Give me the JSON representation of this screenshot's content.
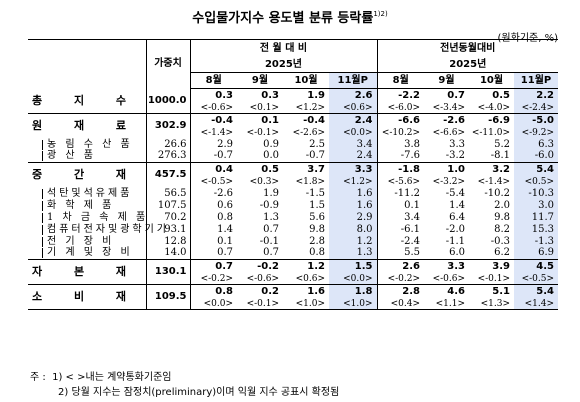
{
  "title": "수입물가지수 용도별 분류 등락률",
  "title_note": "1)2)",
  "unit": "(원화기준, %)",
  "header": {
    "weight": "가중치",
    "mom": "전 월 대 비",
    "yoy": "전년동월대비",
    "year": "2025년",
    "months": [
      "8월",
      "9월",
      "10월",
      "11월P"
    ]
  },
  "rows": [
    {
      "name": "총 지 수",
      "level": 0,
      "weight": "1000.0",
      "mom": [
        "0.3",
        "0.3",
        "1.9",
        "2.6"
      ],
      "mom_c": [
        "<-0.6>",
        "<0.1>",
        "<1.2>",
        "<0.6>"
      ],
      "yoy": [
        "-2.2",
        "0.7",
        "0.5",
        "2.2"
      ],
      "yoy_c": [
        "<-6.0>",
        "<-3.4>",
        "<-4.0>",
        "<-2.4>"
      ]
    },
    {
      "name": "원 재 료",
      "level": 0,
      "weight": "302.9",
      "mom": [
        "-0.4",
        "0.1",
        "-0.4",
        "2.4"
      ],
      "mom_c": [
        "<-1.4>",
        "<-0.1>",
        "<-2.6>",
        "<0.0>"
      ],
      "yoy": [
        "-6.6",
        "-2.6",
        "-6.9",
        "-5.0"
      ],
      "yoy_c": [
        "<-10.2>",
        "<-6.6>",
        "<-11.0>",
        "<-9.2>"
      ]
    },
    {
      "name": "농 림 수 산 품",
      "level": 1,
      "weight": "26.6",
      "mom": [
        "2.9",
        "0.9",
        "2.5",
        "3.4"
      ],
      "yoy": [
        "3.8",
        "3.3",
        "5.2",
        "6.3"
      ]
    },
    {
      "name": "광 산 품",
      "level": 1,
      "weight": "276.3",
      "mom": [
        "-0.7",
        "0.0",
        "-0.7",
        "2.4"
      ],
      "yoy": [
        "-7.6",
        "-3.2",
        "-8.1",
        "-6.0"
      ]
    },
    {
      "name": "중 간 재",
      "level": 0,
      "weight": "457.5",
      "mom": [
        "0.4",
        "0.5",
        "3.7",
        "3.3"
      ],
      "mom_c": [
        "<-0.5>",
        "<0.3>",
        "<1.8>",
        "<1.2>"
      ],
      "yoy": [
        "-1.8",
        "1.0",
        "3.2",
        "5.4"
      ],
      "yoy_c": [
        "<-5.6>",
        "<-3.2>",
        "<-1.4>",
        "<0.5>"
      ]
    },
    {
      "name": "석탄및석유제품",
      "level": 1,
      "weight": "56.5",
      "mom": [
        "-2.6",
        "1.9",
        "-1.5",
        "1.6"
      ],
      "yoy": [
        "-11.2",
        "-5.4",
        "-10.2",
        "-10.3"
      ]
    },
    {
      "name": "화 학 제 품",
      "level": 1,
      "weight": "107.5",
      "mom": [
        "0.6",
        "-0.9",
        "1.5",
        "1.6"
      ],
      "yoy": [
        "0.1",
        "1.4",
        "2.0",
        "3.0"
      ]
    },
    {
      "name": "1 차 금 속 제 품",
      "level": 1,
      "weight": "70.2",
      "mom": [
        "0.8",
        "1.3",
        "5.6",
        "2.9"
      ],
      "yoy": [
        "3.4",
        "6.4",
        "9.8",
        "11.7"
      ]
    },
    {
      "name": "컴퓨터전자및광학기기",
      "level": 1,
      "weight": "93.1",
      "mom": [
        "1.4",
        "0.7",
        "9.8",
        "8.0"
      ],
      "yoy": [
        "-6.1",
        "-2.0",
        "8.2",
        "15.3"
      ]
    },
    {
      "name": "전 기 장 비",
      "level": 1,
      "weight": "12.8",
      "mom": [
        "0.1",
        "-0.1",
        "2.8",
        "1.2"
      ],
      "yoy": [
        "-2.4",
        "-1.1",
        "-0.3",
        "-1.3"
      ]
    },
    {
      "name": "기 계 및 장 비",
      "level": 1,
      "weight": "14.0",
      "mom": [
        "0.7",
        "0.7",
        "0.8",
        "1.3"
      ],
      "yoy": [
        "5.5",
        "6.0",
        "6.2",
        "6.9"
      ]
    },
    {
      "name": "자 본 재",
      "level": 0,
      "weight": "130.1",
      "mom": [
        "0.7",
        "-0.2",
        "1.2",
        "1.5"
      ],
      "mom_c": [
        "<-0.2>",
        "<-0.6>",
        "<0.6>",
        "<0.0>"
      ],
      "yoy": [
        "2.6",
        "3.3",
        "3.9",
        "4.5"
      ],
      "yoy_c": [
        "<-0.2>",
        "<-0.6>",
        "<-0.1>",
        "<-0.5>"
      ]
    },
    {
      "name": "소 비 재",
      "level": 0,
      "weight": "109.5",
      "mom": [
        "0.8",
        "0.2",
        "1.6",
        "1.8"
      ],
      "mom_c": [
        "<0.0>",
        "<-0.1>",
        "<1.0>",
        "<1.0>"
      ],
      "yoy": [
        "2.8",
        "4.6",
        "5.1",
        "5.4"
      ],
      "yoy_c": [
        "<0.4>",
        "<1.1>",
        "<1.3>",
        "<1.4>"
      ]
    }
  ],
  "notes": {
    "prefix": "주 :",
    "n1": "1) < >내는 계약통화기준임",
    "n2": "2) 당월 지수는 잠정치(preliminary)이며 익월 지수 공표시 확정됨"
  }
}
